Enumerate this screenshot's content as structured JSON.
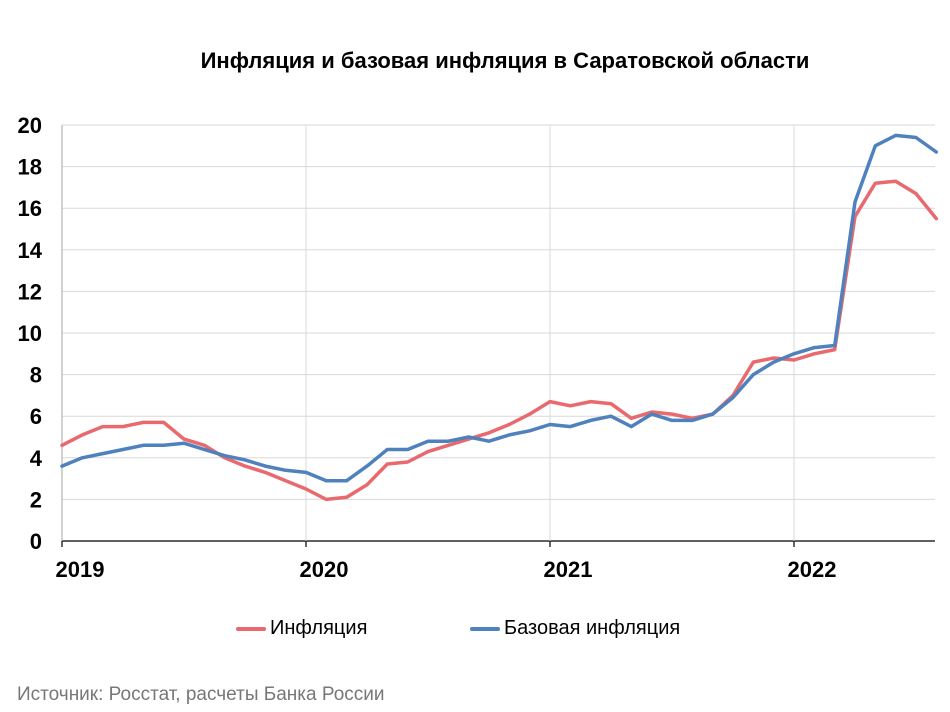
{
  "chart_data": {
    "type": "line",
    "title": "Инфляция и базовая инфляция в Саратовской области",
    "xlabel": "",
    "ylabel": "",
    "ylim": [
      0,
      20
    ],
    "yticks": [
      "0",
      "2",
      "4",
      "6",
      "8",
      "10",
      "12",
      "14",
      "16",
      "18",
      "20"
    ],
    "xticks": [
      "2019",
      "2020",
      "2021",
      "2022"
    ],
    "x_start": "2019-01",
    "grid": true,
    "legend_position": "bottom",
    "series": [
      {
        "name": "Инфляция",
        "color": "#e8696e",
        "values": [
          4.6,
          5.1,
          5.5,
          5.5,
          5.7,
          5.7,
          4.9,
          4.6,
          4.0,
          3.6,
          3.3,
          2.9,
          2.5,
          2.0,
          2.1,
          2.7,
          3.7,
          3.8,
          4.3,
          4.6,
          4.9,
          5.2,
          5.6,
          6.1,
          6.7,
          6.5,
          6.7,
          6.6,
          5.9,
          6.2,
          6.1,
          5.9,
          6.1,
          7.0,
          8.6,
          8.8,
          8.7,
          9.0,
          9.2,
          15.6,
          17.2,
          17.3,
          16.7,
          15.5
        ],
        "x_start": "2019-01"
      },
      {
        "name": "Базовая инфляция",
        "color": "#4f81bd",
        "values": [
          3.6,
          4.0,
          4.2,
          4.4,
          4.6,
          4.6,
          4.7,
          4.4,
          4.1,
          3.9,
          3.6,
          3.4,
          3.3,
          2.9,
          2.9,
          3.6,
          4.4,
          4.4,
          4.8,
          4.8,
          5.0,
          4.8,
          5.1,
          5.3,
          5.6,
          5.5,
          5.8,
          6.0,
          5.5,
          6.1,
          5.8,
          5.8,
          6.1,
          6.9,
          8.0,
          8.6,
          9.0,
          9.3,
          9.4,
          16.3,
          19.0,
          19.5,
          19.4,
          18.7
        ],
        "x_start": "2019-01"
      }
    ]
  },
  "source_text": "Источник: Росстат, расчеты Банка России",
  "colors": {
    "grid": "#d9d9d9",
    "axis": "#000000"
  }
}
